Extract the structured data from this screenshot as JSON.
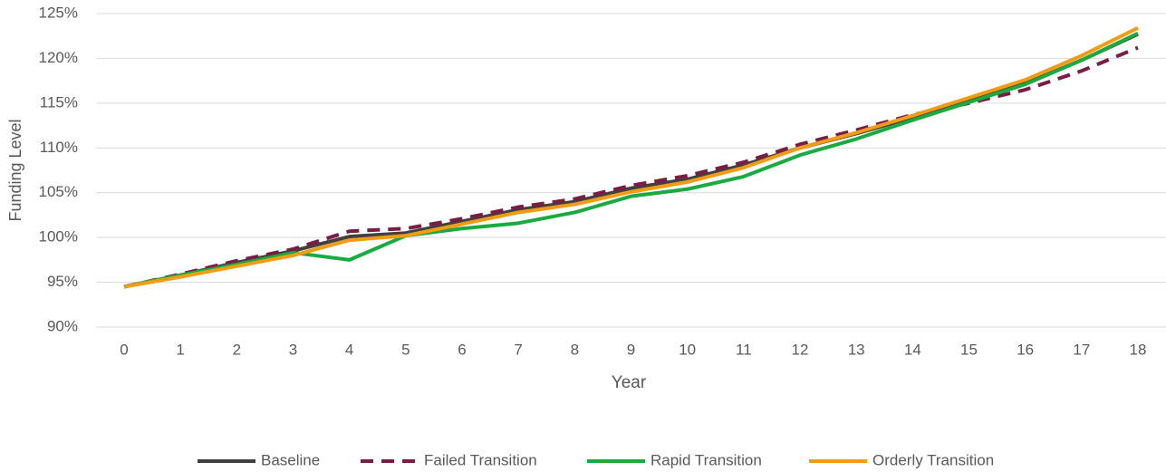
{
  "chart_data": {
    "type": "line",
    "x_label": "Year",
    "y_label": "Funding Level",
    "categories": [
      "0",
      "1",
      "2",
      "3",
      "4",
      "5",
      "6",
      "7",
      "8",
      "9",
      "10",
      "11",
      "12",
      "13",
      "14",
      "15",
      "16",
      "17",
      "18"
    ],
    "ylim": [
      90,
      125
    ],
    "yticks": [
      {
        "value": 90,
        "label": "90%"
      },
      {
        "value": 95,
        "label": "95%"
      },
      {
        "value": 100,
        "label": "100%"
      },
      {
        "value": 105,
        "label": "105%"
      },
      {
        "value": 110,
        "label": "110%"
      },
      {
        "value": 115,
        "label": "115%"
      },
      {
        "value": 120,
        "label": "120%"
      },
      {
        "value": 125,
        "label": "125%"
      }
    ],
    "grid": true,
    "legend": "bottom",
    "series": [
      {
        "name": "Baseline",
        "color": "#404040",
        "style": "solid",
        "values": [
          94.5,
          95.8,
          97.2,
          98.5,
          100.1,
          100.5,
          101.8,
          103.1,
          104.0,
          105.5,
          106.5,
          108.1,
          110.0,
          111.6,
          113.4,
          115.2,
          117.2,
          119.8,
          122.7
        ]
      },
      {
        "name": "Failed Transition",
        "color": "#7b1c45",
        "style": "dashed",
        "values": [
          94.5,
          95.9,
          97.4,
          98.7,
          100.7,
          101.0,
          102.1,
          103.4,
          104.3,
          105.8,
          106.9,
          108.4,
          110.4,
          112.0,
          113.7,
          115.0,
          116.5,
          118.6,
          121.2
        ]
      },
      {
        "name": "Rapid Transition",
        "color": "#1aab40",
        "style": "solid",
        "values": [
          94.5,
          95.8,
          97.0,
          98.3,
          97.5,
          100.2,
          101.0,
          101.6,
          102.8,
          104.6,
          105.4,
          106.8,
          109.2,
          111.0,
          113.1,
          115.1,
          117.1,
          119.8,
          122.8
        ]
      },
      {
        "name": "Orderly Transition",
        "color": "#f39c12",
        "style": "solid",
        "values": [
          94.5,
          95.6,
          96.8,
          98.0,
          99.7,
          100.2,
          101.5,
          102.8,
          103.7,
          105.1,
          106.2,
          107.8,
          110.0,
          111.7,
          113.6,
          115.6,
          117.6,
          120.3,
          123.4
        ]
      }
    ]
  }
}
